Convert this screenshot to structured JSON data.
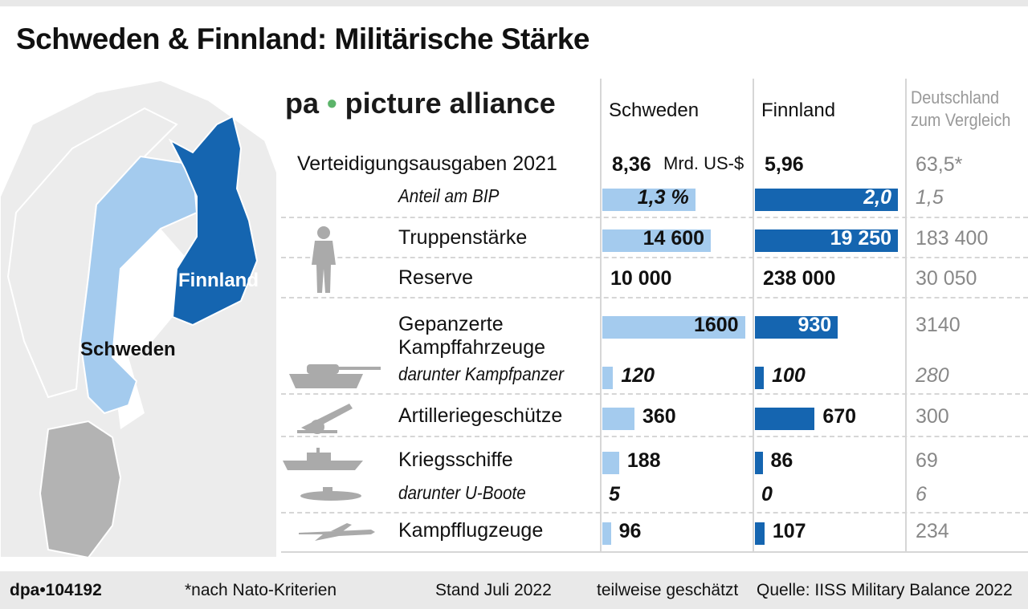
{
  "title": "Schweden & Finnland: Militärische Stärke",
  "map": {
    "labels": {
      "sweden": "Schweden",
      "finland": "Finnland"
    },
    "colors": {
      "sweden": "#a4cbee",
      "finland": "#1565b0",
      "germany": "#b3b3b3",
      "other": "#ececec"
    }
  },
  "columns": {
    "sweden": "Schweden",
    "finland": "Finnland",
    "germany_line1": "Deutschland",
    "germany_line2": "zum Vergleich"
  },
  "chart_data": {
    "type": "table",
    "rows": [
      {
        "label": "Verteidigungsausgaben 2021",
        "sweden": "8,36",
        "sweden_unit": "Mrd. US-$",
        "finland": "5,96",
        "germany": "63,5*"
      },
      {
        "label": "Anteil am BIP",
        "sweden": "1,3 %",
        "finland": "2,0",
        "germany": "1,5",
        "sweden_value": 1.3,
        "finland_value": 2.0
      },
      {
        "label": "Truppenstärke",
        "sweden": "14 600",
        "finland": "19 250",
        "germany": "183 400",
        "sweden_value": 14600,
        "finland_value": 19250
      },
      {
        "label": "Reserve",
        "sweden": "10 000",
        "finland": "238 000",
        "germany": "30 050"
      },
      {
        "label": "Gepanzerte",
        "label2": "Kampffahrzeuge",
        "sweden": "1600",
        "finland": "930",
        "germany": "3140",
        "sweden_value": 1600,
        "finland_value": 930
      },
      {
        "label": "darunter Kampfpanzer",
        "sweden": "120",
        "finland": "100",
        "germany": "280",
        "sweden_value": 120,
        "finland_value": 100
      },
      {
        "label": "Artilleriegeschütze",
        "sweden": "360",
        "finland": "670",
        "germany": "300",
        "sweden_value": 360,
        "finland_value": 670
      },
      {
        "label": "Kriegsschiffe",
        "sweden": "188",
        "finland": "86",
        "germany": "69",
        "sweden_value": 188,
        "finland_value": 86
      },
      {
        "label": "darunter U-Boote",
        "sweden": "5",
        "finland": "0",
        "germany": "6"
      },
      {
        "label": "Kampfflugzeuge",
        "sweden": "96",
        "finland": "107",
        "germany": "234",
        "sweden_value": 96,
        "finland_value": 107
      }
    ]
  },
  "footer": {
    "id": "dpa•104192",
    "note": "*nach Nato-Kriterien",
    "date": "Stand Juli 2022",
    "estimate": "teilweise geschätzt",
    "source": "Quelle: IISS Military Balance 2022"
  },
  "watermark": {
    "left": "pa",
    "dot": "•",
    "right": "picture alliance"
  }
}
